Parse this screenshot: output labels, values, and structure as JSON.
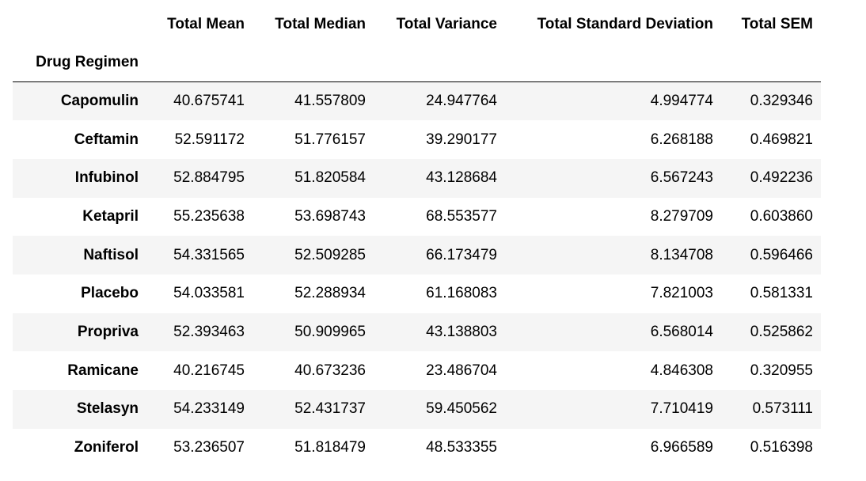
{
  "table": {
    "columns": [
      "Total Mean",
      "Total Median",
      "Total Variance",
      "Total Standard Deviation",
      "Total SEM"
    ],
    "index_name": "Drug Regimen",
    "rows": [
      [
        "Capomulin",
        "40.675741",
        "41.557809",
        "24.947764",
        "4.994774",
        "0.329346"
      ],
      [
        "Ceftamin",
        "52.591172",
        "51.776157",
        "39.290177",
        "6.268188",
        "0.469821"
      ],
      [
        "Infubinol",
        "52.884795",
        "51.820584",
        "43.128684",
        "6.567243",
        "0.492236"
      ],
      [
        "Ketapril",
        "55.235638",
        "53.698743",
        "68.553577",
        "8.279709",
        "0.603860"
      ],
      [
        "Naftisol",
        "54.331565",
        "52.509285",
        "66.173479",
        "8.134708",
        "0.596466"
      ],
      [
        "Placebo",
        "54.033581",
        "52.288934",
        "61.168083",
        "7.821003",
        "0.581331"
      ],
      [
        "Propriva",
        "52.393463",
        "50.909965",
        "43.138803",
        "6.568014",
        "0.525862"
      ],
      [
        "Ramicane",
        "40.216745",
        "40.673236",
        "23.486704",
        "4.846308",
        "0.320955"
      ],
      [
        "Stelasyn",
        "54.233149",
        "52.431737",
        "59.450562",
        "7.710419",
        "0.573111"
      ],
      [
        "Zoniferol",
        "53.236507",
        "51.818479",
        "48.533355",
        "6.966589",
        "0.516398"
      ]
    ]
  }
}
